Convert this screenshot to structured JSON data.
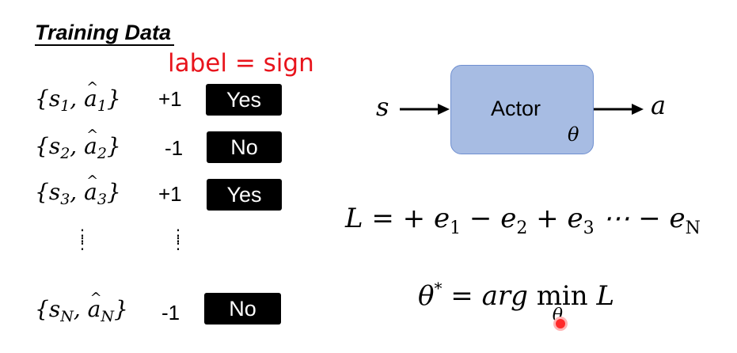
{
  "training_data": {
    "heading": "Training Data",
    "note": "label = sign",
    "rows": [
      {
        "s_sub": "1",
        "sign": "+1",
        "label": "Yes"
      },
      {
        "s_sub": "2",
        "sign": "-1",
        "label": "No"
      },
      {
        "s_sub": "3",
        "sign": "+1",
        "label": "Yes"
      },
      {
        "s_sub": "N",
        "sign": "-1",
        "label": "No"
      }
    ]
  },
  "diagram": {
    "input": "s",
    "box_label": "Actor",
    "param": "θ",
    "output": "a",
    "box_color": "#a7bce3",
    "arrow_color": "#000000"
  },
  "equations": {
    "loss_head": "L = + e",
    "loss_e1": "1",
    "loss_mid1": " − e",
    "loss_e2": "2",
    "loss_mid2": " + e",
    "loss_e3": "3",
    "loss_tail": " ⋯ − e",
    "loss_eN": "N",
    "opt_lhs": "θ",
    "opt_star": "*",
    "opt_eq": " = arg ",
    "opt_min": "min",
    "opt_under": "θ",
    "opt_rhs": "L"
  }
}
